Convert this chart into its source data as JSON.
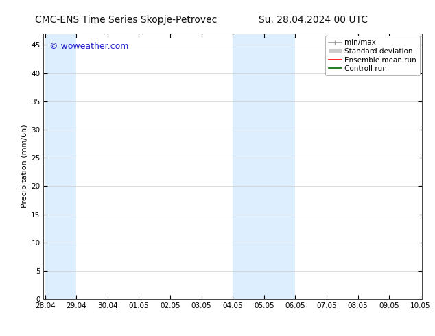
{
  "title_left": "CMC-ENS Time Series Skopje-Petrovec",
  "title_right": "Su. 28.04.2024 00 UTC",
  "ylabel": "Precipitation (mm/6h)",
  "watermark": "© woweather.com",
  "ylim": [
    0,
    47
  ],
  "yticks": [
    0,
    5,
    10,
    15,
    20,
    25,
    30,
    35,
    40,
    45
  ],
  "x_tick_labels": [
    "28.04",
    "29.04",
    "30.04",
    "01.05",
    "02.05",
    "03.05",
    "04.05",
    "05.05",
    "06.05",
    "07.05",
    "08.05",
    "09.05",
    "10.05"
  ],
  "x_tick_positions": [
    0,
    1,
    2,
    3,
    4,
    5,
    6,
    7,
    8,
    9,
    10,
    11,
    12
  ],
  "x_min": -0.05,
  "x_max": 12.05,
  "shaded_regions": [
    {
      "x_start": 0,
      "x_end": 1.0,
      "color": "#ddeeff"
    },
    {
      "x_start": 6.0,
      "x_end": 7.0,
      "color": "#ddeeff"
    },
    {
      "x_start": 7.0,
      "x_end": 8.0,
      "color": "#ddeeff"
    }
  ],
  "legend_entries": [
    {
      "label": "min/max",
      "color": "#999999",
      "linewidth": 1.2
    },
    {
      "label": "Standard deviation",
      "color": "#cccccc",
      "linewidth": 5
    },
    {
      "label": "Ensemble mean run",
      "color": "#ff0000",
      "linewidth": 1.2
    },
    {
      "label": "Controll run",
      "color": "#006600",
      "linewidth": 1.2
    }
  ],
  "background_color": "#ffffff",
  "plot_bg_color": "#ffffff",
  "grid_color": "#cccccc",
  "title_fontsize": 10,
  "watermark_color": "#2222cc",
  "watermark_fontsize": 9,
  "ylabel_fontsize": 8,
  "tick_fontsize": 7.5,
  "legend_fontsize": 7.5
}
